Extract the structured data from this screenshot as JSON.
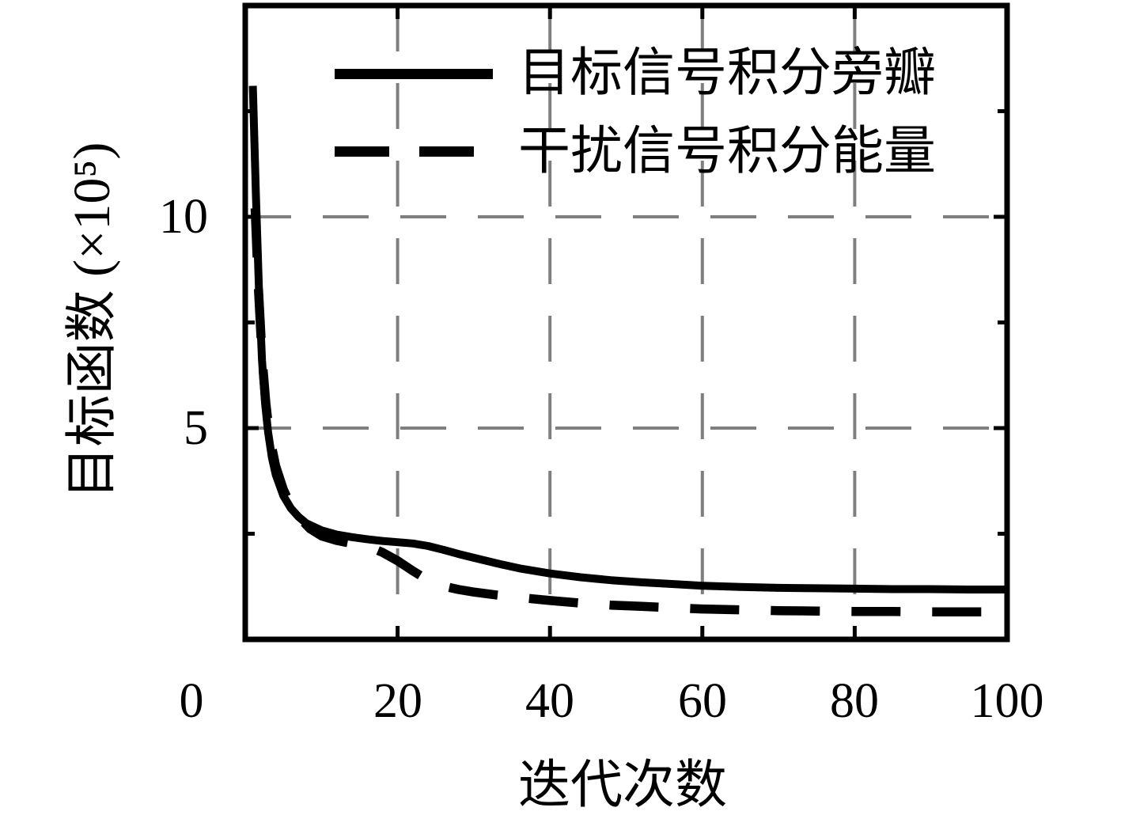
{
  "figure": {
    "background": "#ffffff",
    "line_color": "#000000",
    "grid_color": "#7f7f7f"
  },
  "chart_data": {
    "type": "line",
    "title": "",
    "xlabel": "迭代次数",
    "ylabel": "目标函数 (×10⁵)",
    "y_unit_note": "×10⁵",
    "xlim": [
      0,
      100
    ],
    "ylim": [
      0,
      15
    ],
    "grid": {
      "style": "dashed",
      "color": "#7f7f7f",
      "x_values": [
        20,
        40,
        60,
        80
      ],
      "y_values": [
        5,
        10
      ]
    },
    "x_ticks": [
      {
        "value": 0,
        "label": "0"
      },
      {
        "value": 20,
        "label": "20"
      },
      {
        "value": 40,
        "label": "40"
      },
      {
        "value": 60,
        "label": "60"
      },
      {
        "value": 80,
        "label": "80"
      },
      {
        "value": 100,
        "label": "100"
      }
    ],
    "y_ticks": [
      {
        "value": 5,
        "label": "5"
      },
      {
        "value": 10,
        "label": "10"
      }
    ],
    "y_minor_ticks": [
      2.5,
      7.5,
      12.5
    ],
    "legend": {
      "position": "top-left-inside",
      "entries": [
        {
          "label": "目标信号积分旁瓣",
          "line": "solid"
        },
        {
          "label": "干扰信号积分能量",
          "line": "dashed"
        }
      ]
    },
    "series": [
      {
        "name": "目标信号积分旁瓣",
        "style": "solid",
        "color": "#000000",
        "points": [
          [
            1,
            13.1
          ],
          [
            1.4,
            10.5
          ],
          [
            1.8,
            8.3
          ],
          [
            2.2,
            6.6
          ],
          [
            2.6,
            5.6
          ],
          [
            3,
            4.9
          ],
          [
            3.5,
            4.3
          ],
          [
            4,
            3.9
          ],
          [
            5,
            3.4
          ],
          [
            6,
            3.1
          ],
          [
            7,
            2.9
          ],
          [
            8,
            2.75
          ],
          [
            10,
            2.58
          ],
          [
            12,
            2.48
          ],
          [
            14,
            2.42
          ],
          [
            16,
            2.37
          ],
          [
            18,
            2.33
          ],
          [
            20,
            2.3
          ],
          [
            22,
            2.27
          ],
          [
            24,
            2.21
          ],
          [
            26,
            2.12
          ],
          [
            28,
            2.02
          ],
          [
            30,
            1.93
          ],
          [
            33,
            1.8
          ],
          [
            36,
            1.68
          ],
          [
            40,
            1.56
          ],
          [
            44,
            1.47
          ],
          [
            48,
            1.4
          ],
          [
            52,
            1.35
          ],
          [
            56,
            1.31
          ],
          [
            60,
            1.27
          ],
          [
            65,
            1.24
          ],
          [
            70,
            1.22
          ],
          [
            75,
            1.21
          ],
          [
            80,
            1.2
          ],
          [
            85,
            1.19
          ],
          [
            90,
            1.19
          ],
          [
            95,
            1.18
          ],
          [
            100,
            1.18
          ]
        ]
      },
      {
        "name": "干扰信号积分能量",
        "style": "dashed",
        "color": "#000000",
        "points": [
          [
            1.3,
            10.2
          ],
          [
            1.7,
            8.4
          ],
          [
            2.2,
            6.7
          ],
          [
            2.7,
            5.6
          ],
          [
            3.2,
            4.8
          ],
          [
            4,
            4.1
          ],
          [
            5,
            3.55
          ],
          [
            6,
            3.15
          ],
          [
            7,
            2.9
          ],
          [
            8.5,
            2.62
          ],
          [
            10,
            2.45
          ],
          [
            12,
            2.34
          ],
          [
            14,
            2.27
          ],
          [
            16,
            2.21
          ],
          [
            18,
            2.06
          ],
          [
            20,
            1.86
          ],
          [
            22,
            1.62
          ],
          [
            24,
            1.4
          ],
          [
            26,
            1.26
          ],
          [
            28,
            1.18
          ],
          [
            30,
            1.12
          ],
          [
            33,
            1.05
          ],
          [
            36,
            0.99
          ],
          [
            40,
            0.92
          ],
          [
            44,
            0.86
          ],
          [
            48,
            0.81
          ],
          [
            52,
            0.78
          ],
          [
            56,
            0.75
          ],
          [
            60,
            0.72
          ],
          [
            65,
            0.7
          ],
          [
            70,
            0.68
          ],
          [
            75,
            0.67
          ],
          [
            80,
            0.66
          ],
          [
            85,
            0.66
          ],
          [
            90,
            0.65
          ],
          [
            95,
            0.65
          ],
          [
            100,
            0.65
          ]
        ]
      }
    ]
  }
}
